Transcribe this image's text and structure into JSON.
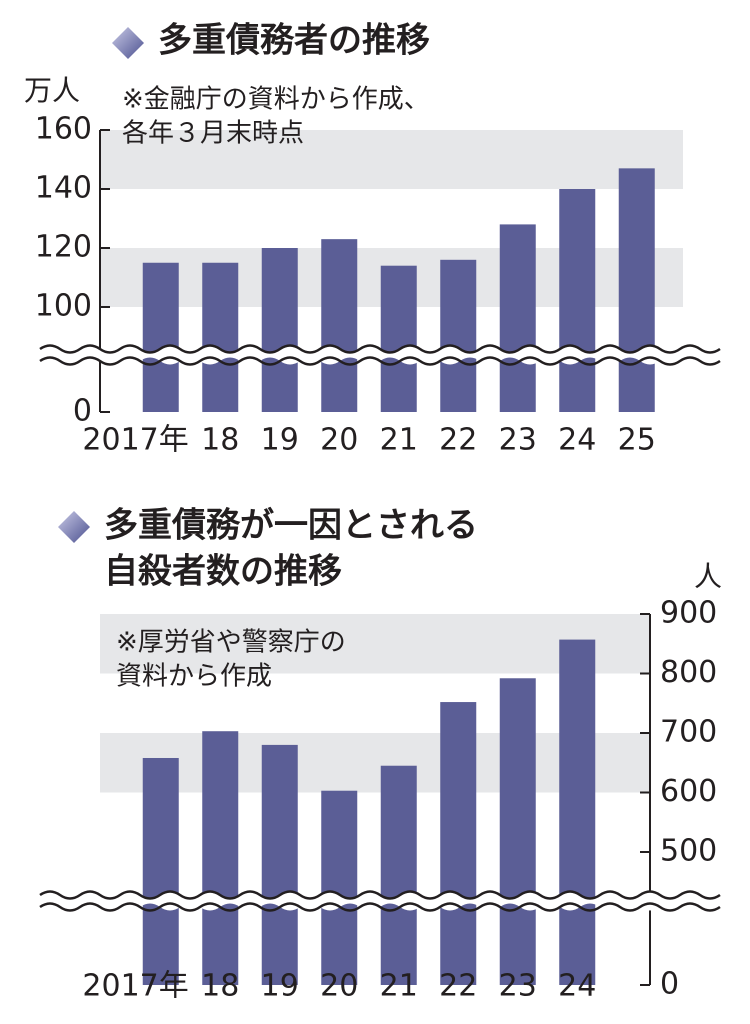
{
  "chart_data": [
    {
      "type": "bar",
      "title": [
        "多重債務者の推移"
      ],
      "y_unit": "万人",
      "note": [
        "※金融庁の資料から作成、",
        "各年３月末時点"
      ],
      "categories": [
        "2017年",
        "18",
        "19",
        "20",
        "21",
        "22",
        "23",
        "24",
        "25"
      ],
      "values": [
        115,
        115,
        120,
        123,
        114,
        116,
        128,
        140,
        147
      ],
      "color": "#5b5e96",
      "ylim": [
        0,
        160
      ],
      "yticks": [
        0,
        100,
        120,
        140,
        160
      ],
      "axis_break": 100,
      "y_axis_side": "left",
      "grid": "bands",
      "band_color": "#e6e7e9"
    },
    {
      "type": "bar",
      "title": [
        "多重債務が一因とされる",
        "自殺者数の推移"
      ],
      "y_unit": "人",
      "note": [
        "※厚労省や警察庁の",
        "資料から作成"
      ],
      "categories": [
        "2017年",
        "18",
        "19",
        "20",
        "21",
        "22",
        "23",
        "24"
      ],
      "values": [
        658,
        703,
        680,
        603,
        645,
        752,
        792,
        857
      ],
      "color": "#5b5e96",
      "ylim": [
        0,
        900
      ],
      "yticks": [
        0,
        500,
        600,
        700,
        800,
        900
      ],
      "axis_break": 500,
      "y_axis_side": "right",
      "grid": "bands",
      "band_color": "#e6e7e9"
    }
  ]
}
